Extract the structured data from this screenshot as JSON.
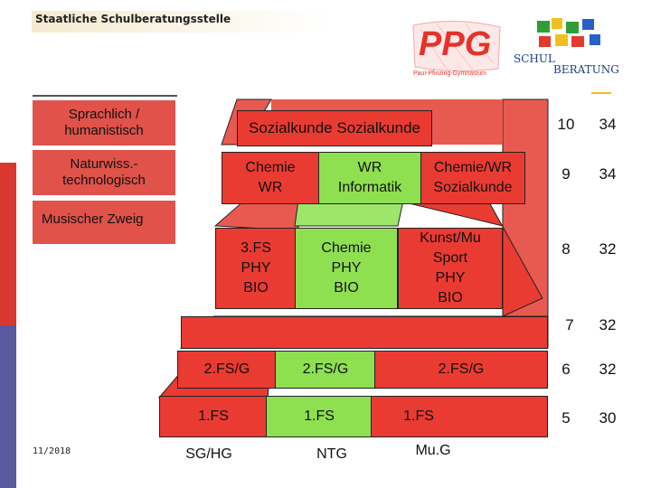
{
  "header": {
    "title": "Staatliche Schulberatungsstelle"
  },
  "logos": {
    "ppg": {
      "text": "PPG",
      "subtitle": "Paul-Pfinzing-Gymnasium"
    },
    "schulberatung": {
      "line1": "SCHUL",
      "line2": "BERATUNG"
    }
  },
  "legend": {
    "sprachlich": "Sprachlich / humanistisch",
    "naturwiss": "Naturwiss.- technologisch",
    "musisch": "Musischer Zweig"
  },
  "rows": {
    "r10": {
      "label": "Sozialkunde Sozialkunde",
      "grade": "10",
      "hours": "34"
    },
    "r9": {
      "c1": "Chemie\nWR",
      "c2": "WR\nInformatik",
      "c3": "Chemie/WR\nSozialkunde",
      "grade": "9",
      "hours": "34"
    },
    "r8": {
      "c1": "3.FS\nPHY\nBIO",
      "c2": "Chemie\nPHY\nBIO",
      "c3": "Kunst/Mu\nSport\nPHY\nBIO",
      "grade": "8",
      "hours": "32"
    },
    "r7": {
      "grade": "7",
      "hours": "32"
    },
    "r6": {
      "c1": "2.FS/G",
      "c2": "2.FS/G",
      "c3": "2.FS/G",
      "grade": "6",
      "hours": "32"
    },
    "r5": {
      "c1": "1.FS",
      "c2": "1.FS",
      "c3": "1.FS",
      "grade": "5",
      "hours": "30"
    }
  },
  "footer": {
    "c1": "SG/HG",
    "c2": "NTG",
    "c3": "Mu.G"
  },
  "date": "11/2018",
  "colors": {
    "red": "#ea3b33",
    "green": "#8fe050",
    "sidebar_red": "#d9372f",
    "sidebar_blue": "#5a5a9e"
  }
}
